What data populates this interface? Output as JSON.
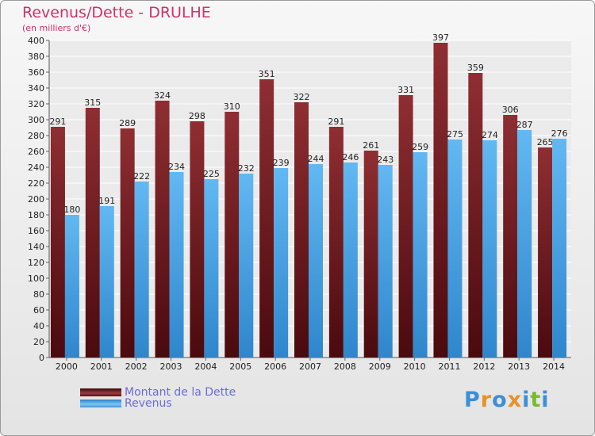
{
  "chart_data": {
    "type": "bar",
    "title": "Revenus/Dette - DRULHE",
    "subtitle": "(en milliers d'€)",
    "categories": [
      "2000",
      "2001",
      "2002",
      "2003",
      "2004",
      "2005",
      "2006",
      "2007",
      "2008",
      "2009",
      "2010",
      "2011",
      "2012",
      "2013",
      "2014"
    ],
    "series": [
      {
        "name": "Montant de la Dette",
        "color": "#7a1f24",
        "values": [
          291,
          315,
          289,
          324,
          298,
          310,
          351,
          322,
          291,
          261,
          331,
          397,
          359,
          306,
          265
        ]
      },
      {
        "name": "Revenus",
        "color": "#4ea8e6",
        "values": [
          180,
          191,
          222,
          234,
          225,
          232,
          239,
          244,
          246,
          243,
          259,
          275,
          274,
          287,
          276
        ]
      }
    ],
    "ylim": [
      0,
      400
    ],
    "yticks": [
      0,
      20,
      40,
      60,
      80,
      100,
      120,
      140,
      160,
      180,
      200,
      220,
      240,
      260,
      280,
      300,
      320,
      340,
      360,
      380,
      400
    ],
    "grid": true,
    "legend_position": "bottom-left",
    "xlabel": "",
    "ylabel": ""
  },
  "legend": {
    "debt_label": "Montant de la Dette",
    "revenue_label": "Revenus"
  },
  "logo": {
    "letters": [
      "P",
      "r",
      "o",
      "x",
      "i",
      "t",
      "i"
    ],
    "colors": [
      "#3d8fd6",
      "#e8912a",
      "#3d8fd6",
      "#e8912a",
      "#3d8fd6",
      "#79b833",
      "#3d8fd6"
    ]
  }
}
